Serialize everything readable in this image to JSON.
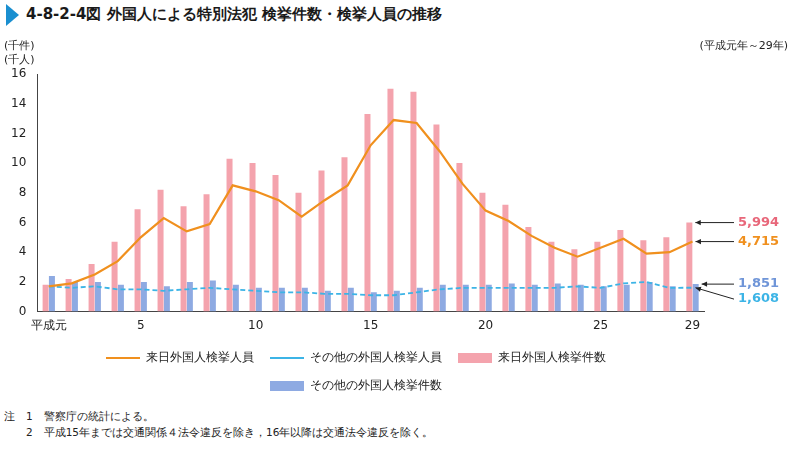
{
  "chart_data": {
    "type": "bar",
    "title": "4-8-2-4図 外国人による特別法犯 検挙件数・検挙人員の推移",
    "subtitle": "(平成元年～29年)",
    "y_label": [
      "(千件)",
      "(千人)"
    ],
    "categories": [
      "平成元",
      null,
      null,
      null,
      "5",
      null,
      null,
      null,
      null,
      "10",
      null,
      null,
      null,
      null,
      "15",
      null,
      null,
      null,
      null,
      "20",
      null,
      null,
      null,
      null,
      "25",
      null,
      null,
      null,
      "29"
    ],
    "series": [
      {
        "name": "来日外国人検挙件数",
        "type": "bar",
        "color": "#f4a3ad",
        "values": [
          1.8,
          2.2,
          3.2,
          4.7,
          6.9,
          8.2,
          7.1,
          7.9,
          10.3,
          10.0,
          9.2,
          8.0,
          9.5,
          10.4,
          13.3,
          15.0,
          14.8,
          12.6,
          10.0,
          8.0,
          7.2,
          5.7,
          4.7,
          4.2,
          4.7,
          5.5,
          4.8,
          5.0,
          5.994
        ]
      },
      {
        "name": "その他の外国人検挙件数",
        "type": "bar",
        "color": "#8eaae2",
        "values": [
          2.4,
          2.0,
          2.0,
          1.8,
          2.0,
          1.7,
          2.0,
          2.1,
          1.8,
          1.6,
          1.6,
          1.6,
          1.4,
          1.6,
          1.3,
          1.4,
          1.6,
          1.8,
          1.8,
          1.8,
          1.9,
          1.8,
          1.9,
          1.8,
          1.7,
          1.8,
          2.0,
          1.7,
          1.851
        ]
      },
      {
        "name": "来日外国人検挙人員",
        "type": "line",
        "color": "#f0901e",
        "line_style": "solid",
        "values": [
          1.7,
          1.9,
          2.5,
          3.4,
          5.0,
          6.3,
          5.4,
          5.9,
          8.5,
          8.1,
          7.5,
          6.4,
          7.5,
          8.5,
          11.2,
          12.9,
          12.7,
          10.8,
          8.6,
          6.8,
          6.1,
          5.1,
          4.3,
          3.7,
          4.3,
          4.9,
          3.9,
          4.0,
          4.715
        ]
      },
      {
        "name": "その他の外国人検挙人員",
        "type": "line",
        "color": "#3cb4e6",
        "line_style": "dashed",
        "values": [
          1.7,
          1.6,
          1.7,
          1.5,
          1.5,
          1.4,
          1.5,
          1.6,
          1.5,
          1.4,
          1.3,
          1.3,
          1.2,
          1.2,
          1.1,
          1.1,
          1.3,
          1.5,
          1.6,
          1.6,
          1.6,
          1.6,
          1.6,
          1.7,
          1.6,
          1.9,
          2.0,
          1.6,
          1.608
        ]
      }
    ],
    "annotations": [
      {
        "label": "5,994",
        "value": 5.994,
        "series": "来日外国人検挙件数",
        "color": "#e8677a"
      },
      {
        "label": "4,715",
        "value": 4.715,
        "series": "来日外国人検挙人員",
        "color": "#f0901e"
      },
      {
        "label": "1,851",
        "value": 1.851,
        "series": "その他の外国人検挙件数",
        "color": "#6f95d8"
      },
      {
        "label": "1,608",
        "value": 1.608,
        "series": "その他の外国人検挙人員",
        "color": "#3cb4e6"
      }
    ],
    "ylim": [
      0,
      16
    ],
    "yticks": [
      0,
      2,
      4,
      6,
      8,
      10,
      12,
      14,
      16
    ],
    "grid": false,
    "legend": "bottom",
    "notes": [
      "注　1　警察庁の統計による。",
      "　　2　平成15年までは交通関係４法令違反を除き，16年以降は交通法令違反を除く。"
    ]
  }
}
